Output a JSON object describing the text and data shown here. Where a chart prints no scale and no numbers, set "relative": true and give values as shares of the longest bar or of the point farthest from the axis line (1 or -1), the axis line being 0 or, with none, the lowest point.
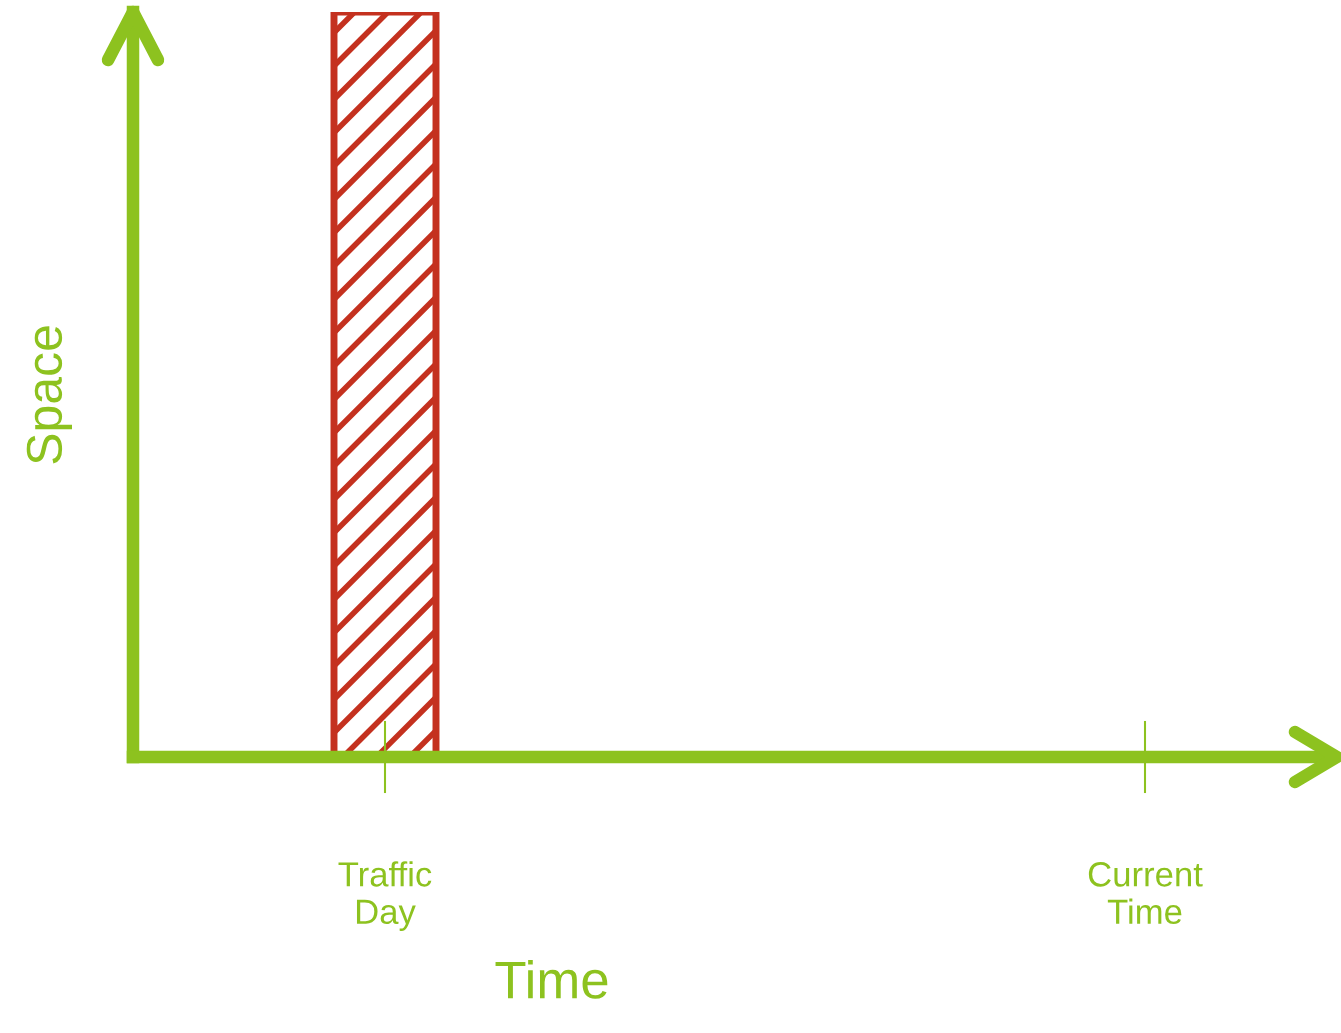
{
  "chart_data": {
    "type": "bar",
    "relative": true,
    "xlabel": "Time",
    "ylabel": "Space",
    "categories": [
      "Traffic\nDay",
      "Current\nTime"
    ],
    "values": [
      1,
      null
    ],
    "color": "#c4311f",
    "grid": false,
    "legend": false,
    "tick_labels": "x"
  }
}
